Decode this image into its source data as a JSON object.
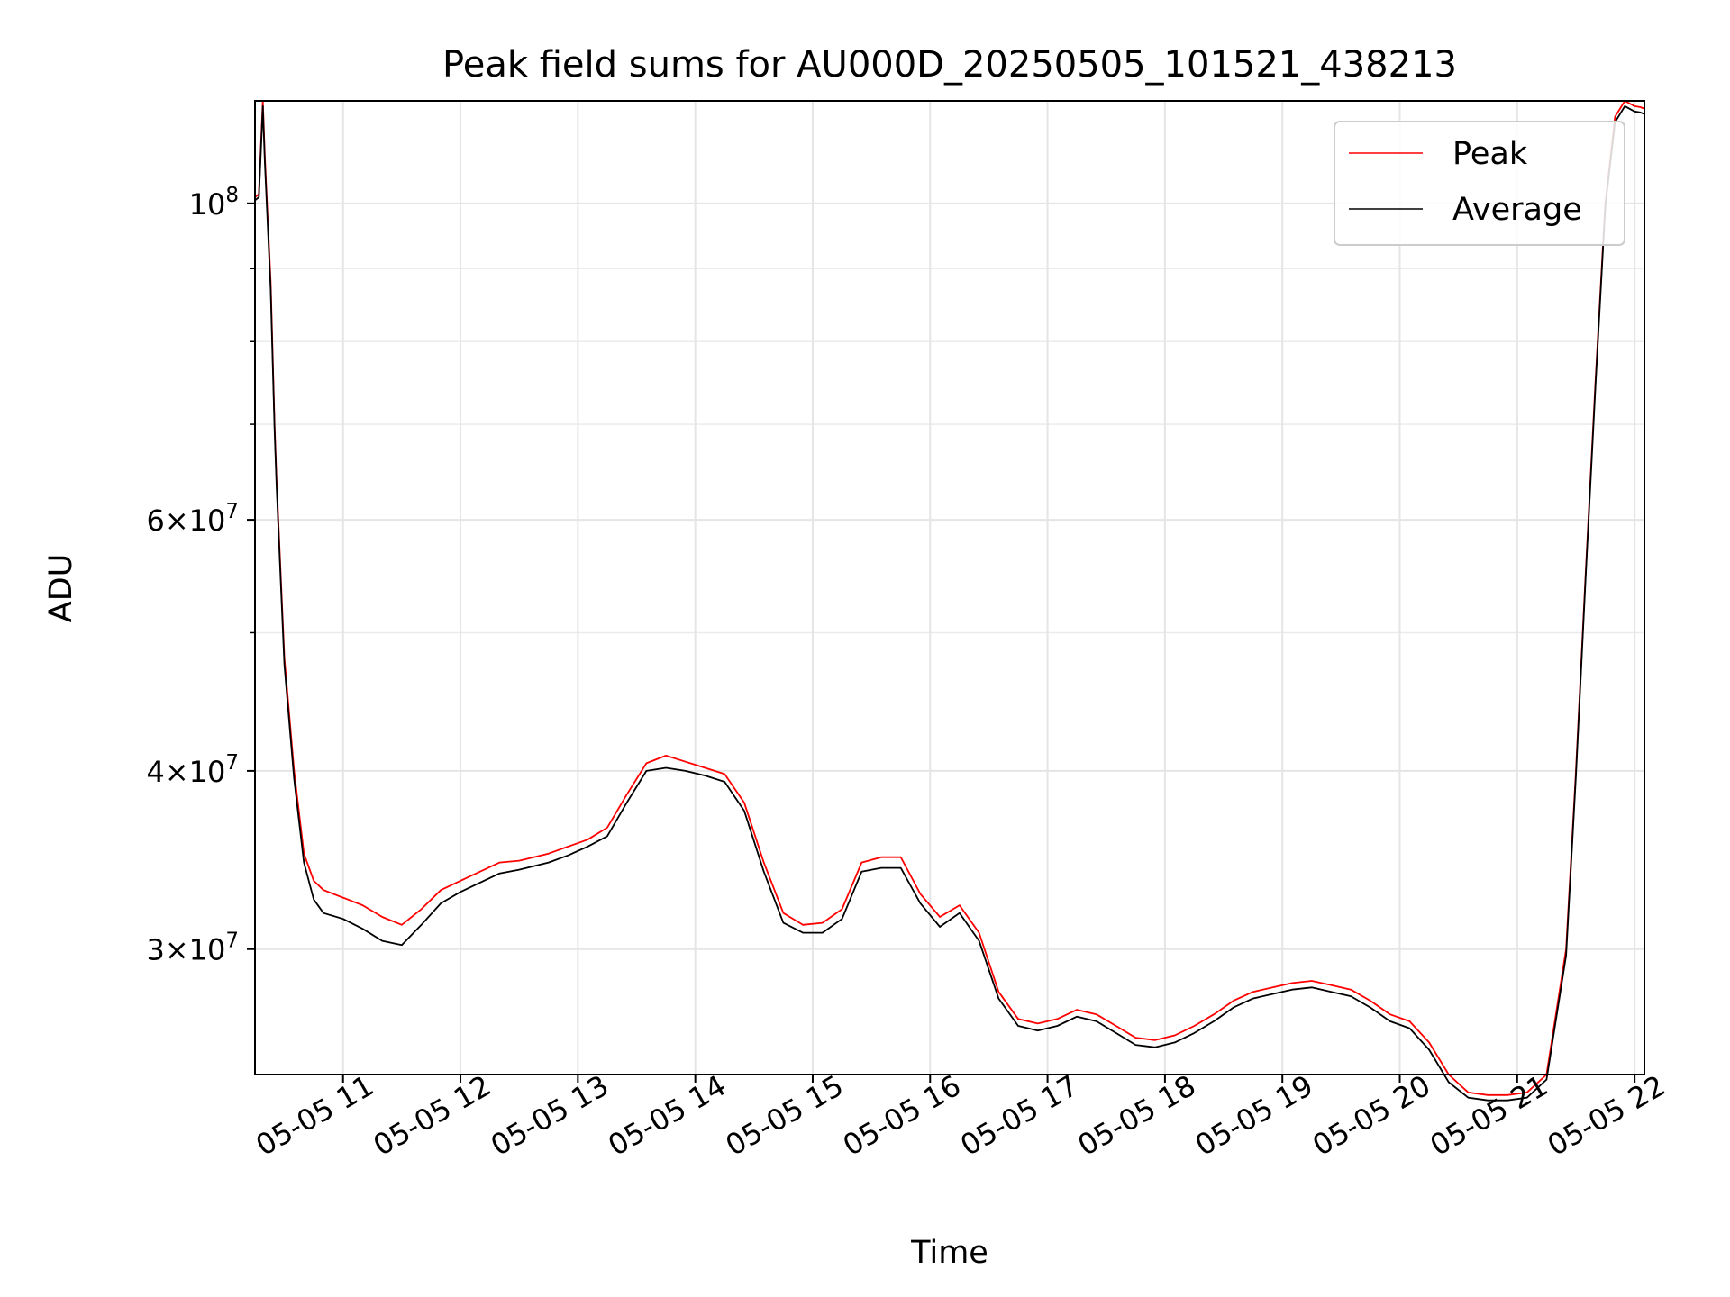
{
  "chart_data": {
    "type": "line",
    "title": "Peak field sums for AU000D_20250505_101521_438213",
    "xlabel": "Time",
    "ylabel": "ADU",
    "yscale": "log",
    "grid": true,
    "legend_position": "top-right",
    "xlim": [
      "05-05 10:15",
      "05-05 22:05"
    ],
    "ylim": [
      24500000,
      118000000
    ],
    "xticks": [
      "05-05 11",
      "05-05 12",
      "05-05 13",
      "05-05 14",
      "05-05 15",
      "05-05 16",
      "05-05 17",
      "05-05 18",
      "05-05 19",
      "05-05 20",
      "05-05 21",
      "05-05 22"
    ],
    "yticks": [
      {
        "value": 30000000,
        "mantissa": "3",
        "exponent": "7"
      },
      {
        "value": 40000000,
        "mantissa": "4",
        "exponent": "7"
      },
      {
        "value": 60000000,
        "mantissa": "6",
        "exponent": "7"
      },
      {
        "value": 100000000,
        "mantissa": "",
        "exponent": "8"
      }
    ],
    "series": [
      {
        "name": "Peak",
        "color": "#ff0000",
        "x": [
          "05-05 10:15",
          "05-05 10:17",
          "05-05 10:19",
          "05-05 10:20",
          "05-05 10:23",
          "05-05 10:25",
          "05-05 10:26",
          "05-05 10:30",
          "05-05 10:35",
          "05-05 10:40",
          "05-05 10:45",
          "05-05 10:50",
          "05-05 11:00",
          "05-05 11:10",
          "05-05 11:20",
          "05-05 11:30",
          "05-05 11:40",
          "05-05 11:50",
          "05-05 12:00",
          "05-05 12:10",
          "05-05 12:20",
          "05-05 12:30",
          "05-05 12:45",
          "05-05 12:55",
          "05-05 13:05",
          "05-05 13:15",
          "05-05 13:25",
          "05-05 13:35",
          "05-05 13:45",
          "05-05 13:55",
          "05-05 14:05",
          "05-05 14:15",
          "05-05 14:25",
          "05-05 14:35",
          "05-05 14:45",
          "05-05 14:55",
          "05-05 15:05",
          "05-05 15:15",
          "05-05 15:25",
          "05-05 15:35",
          "05-05 15:45",
          "05-05 15:55",
          "05-05 16:05",
          "05-05 16:15",
          "05-05 16:25",
          "05-05 16:35",
          "05-05 16:45",
          "05-05 16:55",
          "05-05 17:05",
          "05-05 17:15",
          "05-05 17:25",
          "05-05 17:35",
          "05-05 17:45",
          "05-05 17:55",
          "05-05 18:05",
          "05-05 18:15",
          "05-05 18:25",
          "05-05 18:35",
          "05-05 18:45",
          "05-05 18:55",
          "05-05 19:05",
          "05-05 19:15",
          "05-05 19:25",
          "05-05 19:35",
          "05-05 19:45",
          "05-05 19:55",
          "05-05 20:05",
          "05-05 20:15",
          "05-05 20:25",
          "05-05 20:35",
          "05-05 20:45",
          "05-05 20:55",
          "05-05 21:05",
          "05-05 21:15",
          "05-05 21:25",
          "05-05 21:30",
          "05-05 21:35",
          "05-05 21:40",
          "05-05 21:45",
          "05-05 21:50",
          "05-05 21:55",
          "05-05 22:00",
          "05-05 22:03",
          "05-05 22:05"
        ],
        "values": [
          101000000,
          101500000,
          118000000,
          108000000,
          88000000,
          70000000,
          64000000,
          48000000,
          40000000,
          35000000,
          33500000,
          33000000,
          32600000,
          32200000,
          31600000,
          31200000,
          32000000,
          33000000,
          33500000,
          34000000,
          34500000,
          34600000,
          35000000,
          35400000,
          35800000,
          36500000,
          38500000,
          40500000,
          41000000,
          40600000,
          40200000,
          39800000,
          38000000,
          34500000,
          31800000,
          31200000,
          31300000,
          32000000,
          34500000,
          34800000,
          34800000,
          32800000,
          31600000,
          32200000,
          30800000,
          28000000,
          26800000,
          26600000,
          26800000,
          27200000,
          27000000,
          26500000,
          26000000,
          25900000,
          26100000,
          26500000,
          27000000,
          27600000,
          28000000,
          28200000,
          28400000,
          28500000,
          28300000,
          28100000,
          27600000,
          27000000,
          26700000,
          25800000,
          24500000,
          23800000,
          23700000,
          23700000,
          23800000,
          24500000,
          30000000,
          40000000,
          55000000,
          75000000,
          100000000,
          115000000,
          118000000,
          117000000,
          116800000,
          116500000
        ]
      },
      {
        "name": "Average",
        "color": "#000000",
        "x": [
          "05-05 10:15",
          "05-05 10:17",
          "05-05 10:19",
          "05-05 10:20",
          "05-05 10:23",
          "05-05 10:25",
          "05-05 10:26",
          "05-05 10:30",
          "05-05 10:35",
          "05-05 10:40",
          "05-05 10:45",
          "05-05 10:50",
          "05-05 11:00",
          "05-05 11:10",
          "05-05 11:20",
          "05-05 11:30",
          "05-05 11:40",
          "05-05 11:50",
          "05-05 12:00",
          "05-05 12:10",
          "05-05 12:20",
          "05-05 12:30",
          "05-05 12:45",
          "05-05 12:55",
          "05-05 13:05",
          "05-05 13:15",
          "05-05 13:25",
          "05-05 13:35",
          "05-05 13:45",
          "05-05 13:55",
          "05-05 14:05",
          "05-05 14:15",
          "05-05 14:25",
          "05-05 14:35",
          "05-05 14:45",
          "05-05 14:55",
          "05-05 15:05",
          "05-05 15:15",
          "05-05 15:25",
          "05-05 15:35",
          "05-05 15:45",
          "05-05 15:55",
          "05-05 16:05",
          "05-05 16:15",
          "05-05 16:25",
          "05-05 16:35",
          "05-05 16:45",
          "05-05 16:55",
          "05-05 17:05",
          "05-05 17:15",
          "05-05 17:25",
          "05-05 17:35",
          "05-05 17:45",
          "05-05 17:55",
          "05-05 18:05",
          "05-05 18:15",
          "05-05 18:25",
          "05-05 18:35",
          "05-05 18:45",
          "05-05 18:55",
          "05-05 19:05",
          "05-05 19:15",
          "05-05 19:25",
          "05-05 19:35",
          "05-05 19:45",
          "05-05 19:55",
          "05-05 20:05",
          "05-05 20:15",
          "05-05 20:25",
          "05-05 20:35",
          "05-05 20:45",
          "05-05 20:55",
          "05-05 21:05",
          "05-05 21:15",
          "05-05 21:25",
          "05-05 21:30",
          "05-05 21:35",
          "05-05 21:40",
          "05-05 21:45",
          "05-05 21:50",
          "05-05 21:55",
          "05-05 22:00",
          "05-05 22:03",
          "05-05 22:05"
        ],
        "values": [
          100500000,
          101000000,
          117000000,
          107000000,
          87000000,
          69500000,
          63500000,
          47500000,
          39500000,
          34500000,
          32500000,
          31800000,
          31500000,
          31000000,
          30400000,
          30200000,
          31200000,
          32300000,
          32900000,
          33400000,
          33900000,
          34100000,
          34500000,
          34900000,
          35400000,
          36000000,
          38000000,
          40000000,
          40200000,
          40000000,
          39700000,
          39300000,
          37500000,
          34000000,
          31300000,
          30800000,
          30800000,
          31500000,
          34000000,
          34200000,
          34200000,
          32300000,
          31100000,
          31800000,
          30400000,
          27700000,
          26500000,
          26300000,
          26500000,
          26900000,
          26700000,
          26200000,
          25700000,
          25600000,
          25800000,
          26200000,
          26700000,
          27300000,
          27700000,
          27900000,
          28100000,
          28200000,
          28000000,
          27800000,
          27300000,
          26700000,
          26400000,
          25500000,
          24200000,
          23600000,
          23500000,
          23500000,
          23600000,
          24300000,
          29700000,
          39700000,
          54700000,
          74500000,
          99500000,
          114000000,
          117000000,
          116000000,
          115800000,
          115500000
        ]
      }
    ]
  }
}
